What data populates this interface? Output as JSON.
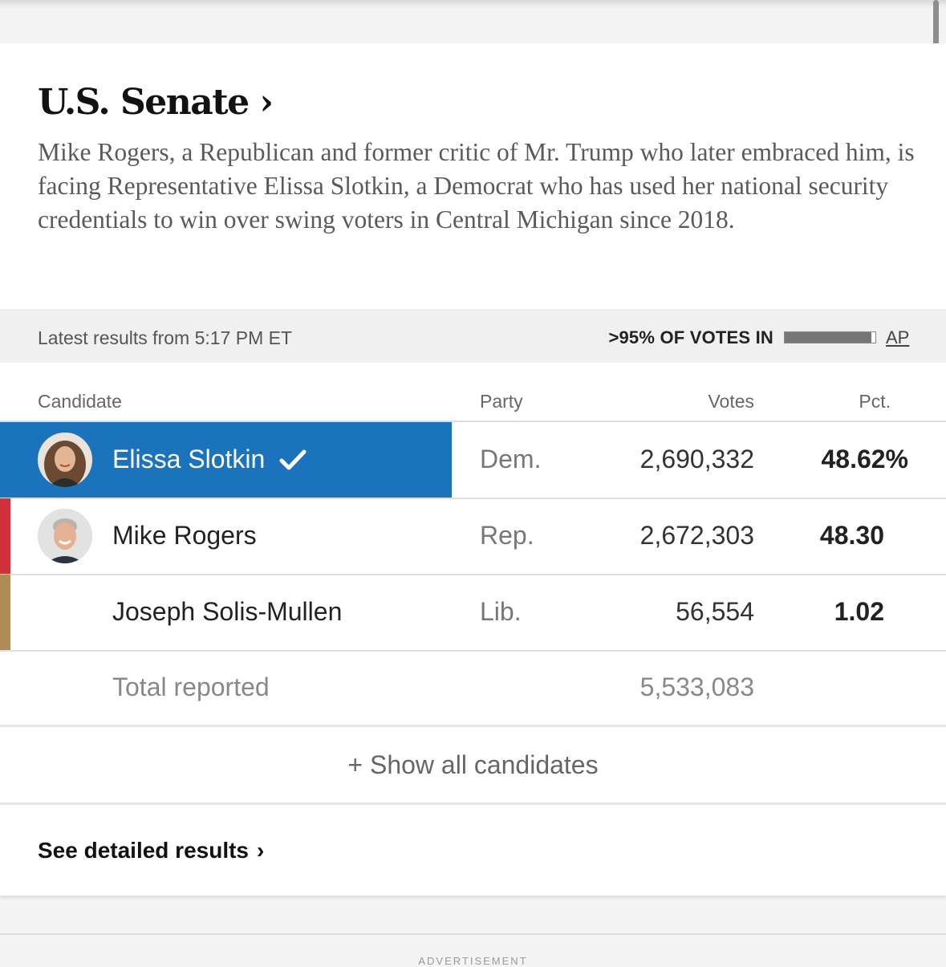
{
  "race": {
    "title": "U.S. Senate ›",
    "description": "Mike Rogers, a Republican and former critic of Mr. Trump who later embraced him, is facing Representative Elissa Slotkin, a Democrat who has used her national security credentials to win over swing voters in Central Michigan since 2018."
  },
  "status": {
    "updated": "Latest results from 5:17 PM ET",
    "votes_in": ">95% OF VOTES IN",
    "votes_in_fraction": 0.96,
    "source": "AP"
  },
  "table": {
    "headers": {
      "candidate": "Candidate",
      "party": "Party",
      "votes": "Votes",
      "pct": "Pct."
    },
    "rows": [
      {
        "name": "Elissa Slotkin",
        "party": "Dem.",
        "votes": "2,690,332",
        "pct": "48.62%",
        "winner": true,
        "party_color": "#1a73bb",
        "avatar": "slotkin-photo"
      },
      {
        "name": "Mike Rogers",
        "party": "Rep.",
        "votes": "2,672,303",
        "pct": "48.30",
        "winner": false,
        "party_color": "#d0303a",
        "avatar": "rogers-photo"
      },
      {
        "name": "Joseph Solis-Mullen",
        "party": "Lib.",
        "votes": "56,554",
        "pct": "1.02",
        "winner": false,
        "party_color": "#b08d57",
        "avatar": null
      }
    ],
    "total_label": "Total reported",
    "total_votes": "5,533,083"
  },
  "actions": {
    "show_all": "+ Show all candidates",
    "detailed": "See detailed results"
  },
  "footer": {
    "ad_label": "ADVERTISEMENT"
  }
}
